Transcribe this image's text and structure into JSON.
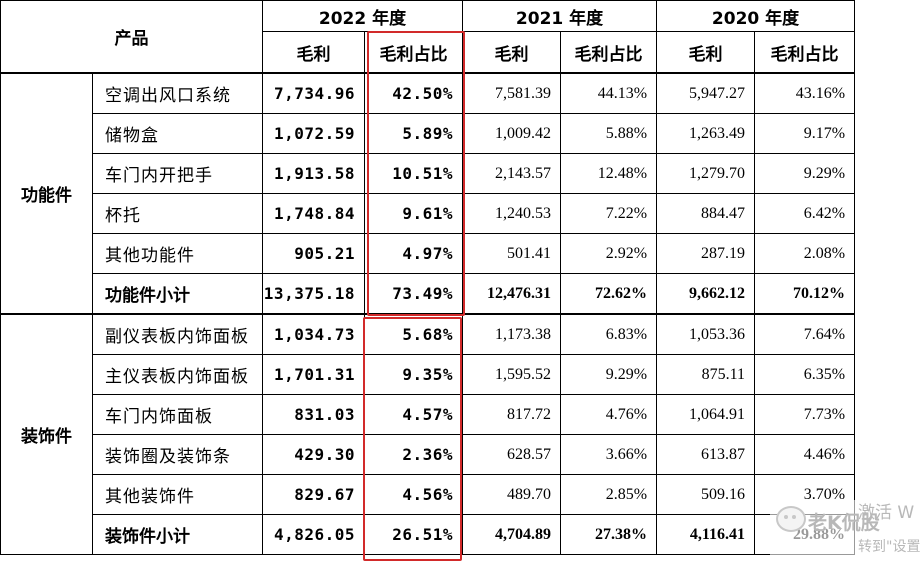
{
  "header": {
    "product": "产品",
    "years": [
      "2022 年度",
      "2021 年度",
      "2020 年度"
    ],
    "metric_gross": "毛利",
    "metric_share": "毛利占比"
  },
  "groups": [
    {
      "category": "功能件",
      "rows": [
        {
          "name": "空调出风口系统",
          "v": [
            "7,734.96",
            "42.50%",
            "7,581.39",
            "44.13%",
            "5,947.27",
            "43.16%"
          ]
        },
        {
          "name": "储物盒",
          "v": [
            "1,072.59",
            "5.89%",
            "1,009.42",
            "5.88%",
            "1,263.49",
            "9.17%"
          ]
        },
        {
          "name": "车门内开把手",
          "v": [
            "1,913.58",
            "10.51%",
            "2,143.57",
            "12.48%",
            "1,279.70",
            "9.29%"
          ]
        },
        {
          "name": "杯托",
          "v": [
            "1,748.84",
            "9.61%",
            "1,240.53",
            "7.22%",
            "884.47",
            "6.42%"
          ]
        },
        {
          "name": "其他功能件",
          "v": [
            "905.21",
            "4.97%",
            "501.41",
            "2.92%",
            "287.19",
            "2.08%"
          ]
        }
      ],
      "subtotal": {
        "name": "功能件小计",
        "v": [
          "13,375.18",
          "73.49%",
          "12,476.31",
          "72.62%",
          "9,662.12",
          "70.12%"
        ]
      }
    },
    {
      "category": "装饰件",
      "rows": [
        {
          "name": "副仪表板内饰面板",
          "v": [
            "1,034.73",
            "5.68%",
            "1,173.38",
            "6.83%",
            "1,053.36",
            "7.64%"
          ]
        },
        {
          "name": "主仪表板内饰面板",
          "v": [
            "1,701.31",
            "9.35%",
            "1,595.52",
            "9.29%",
            "875.11",
            "6.35%"
          ]
        },
        {
          "name": "车门内饰面板",
          "v": [
            "831.03",
            "4.57%",
            "817.72",
            "4.76%",
            "1,064.91",
            "7.73%"
          ]
        },
        {
          "name": "装饰圈及装饰条",
          "v": [
            "429.30",
            "2.36%",
            "628.57",
            "3.66%",
            "613.87",
            "4.46%"
          ]
        },
        {
          "name": "其他装饰件",
          "v": [
            "829.67",
            "4.56%",
            "489.70",
            "2.85%",
            "509.16",
            "3.70%"
          ]
        }
      ],
      "subtotal": {
        "name": "装饰件小计",
        "v": [
          "4,826.05",
          "26.51%",
          "4,704.89",
          "27.38%",
          "4,116.41",
          "29.88%"
        ]
      }
    }
  ],
  "highlight_color": "#d22a2a",
  "watermark": {
    "line1": "激活 W",
    "line2": "老K侃股",
    "line3": "转到\"设置"
  }
}
